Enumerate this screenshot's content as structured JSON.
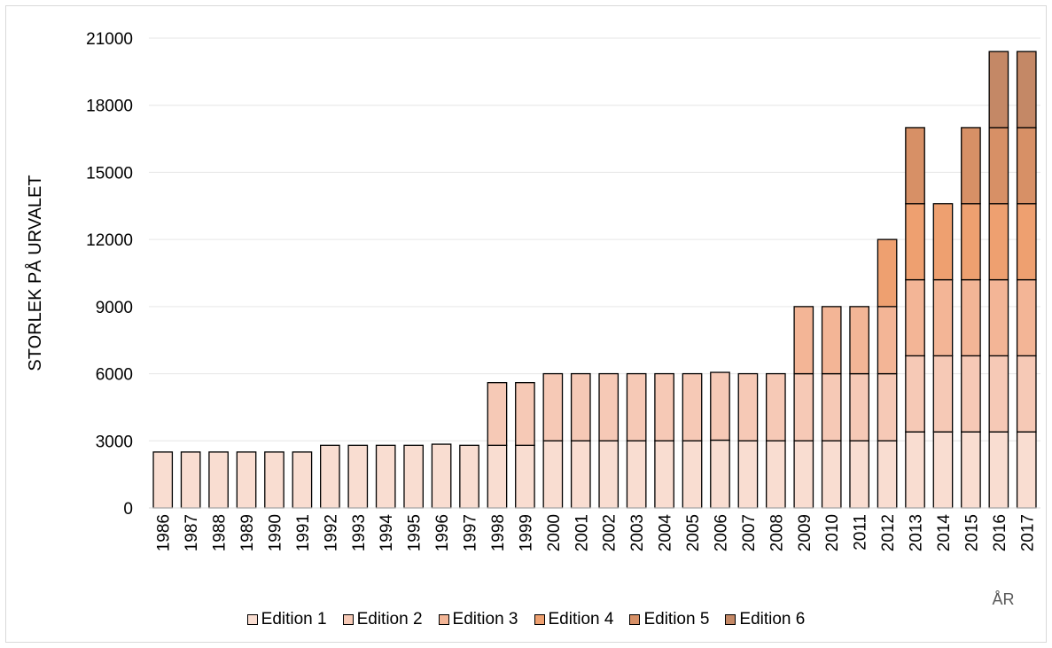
{
  "chart_data": {
    "type": "bar",
    "stacked": true,
    "title": "",
    "xlabel": "ÅR",
    "ylabel": "STORLEK PÅ URVALET",
    "ylim": [
      0,
      21000
    ],
    "yticks": [
      0,
      3000,
      6000,
      9000,
      12000,
      15000,
      18000,
      21000
    ],
    "ytick_labels": [
      "0",
      "3000",
      "6000",
      "9000",
      "12000",
      "15000",
      "18000",
      "21000"
    ],
    "grid": "horizontal",
    "legend_position": "bottom",
    "categories": [
      "1986",
      "1987",
      "1988",
      "1989",
      "1990",
      "1991",
      "1992",
      "1993",
      "1994",
      "1995",
      "1996",
      "1997",
      "1998",
      "1999",
      "2000",
      "2001",
      "2002",
      "2003",
      "2004",
      "2005",
      "2006",
      "2007",
      "2008",
      "2009",
      "2010",
      "2011",
      "2012",
      "2013",
      "2014",
      "2015",
      "2016",
      "2017"
    ],
    "series": [
      {
        "name": "Edition 1",
        "color": "#f9ddd1",
        "values": [
          2500,
          2500,
          2500,
          2500,
          2500,
          2500,
          2800,
          2800,
          2800,
          2800,
          2850,
          2800,
          2800,
          2800,
          3000,
          3000,
          3000,
          3000,
          3000,
          3000,
          3030,
          3000,
          3000,
          3000,
          3000,
          3000,
          3000,
          3400,
          3400,
          3400,
          3400,
          3400
        ]
      },
      {
        "name": "Edition 2",
        "color": "#f6c9b6",
        "values": [
          0,
          0,
          0,
          0,
          0,
          0,
          0,
          0,
          0,
          0,
          0,
          0,
          2800,
          2800,
          3000,
          3000,
          3000,
          3000,
          3000,
          3000,
          3030,
          3000,
          3000,
          3000,
          3000,
          3000,
          3000,
          3400,
          3400,
          3400,
          3400,
          3400
        ]
      },
      {
        "name": "Edition 3",
        "color": "#f3b596",
        "values": [
          0,
          0,
          0,
          0,
          0,
          0,
          0,
          0,
          0,
          0,
          0,
          0,
          0,
          0,
          0,
          0,
          0,
          0,
          0,
          0,
          0,
          0,
          0,
          3000,
          3000,
          3000,
          3000,
          3400,
          3400,
          3400,
          3400,
          3400
        ]
      },
      {
        "name": "Edition 4",
        "color": "#eea070",
        "values": [
          0,
          0,
          0,
          0,
          0,
          0,
          0,
          0,
          0,
          0,
          0,
          0,
          0,
          0,
          0,
          0,
          0,
          0,
          0,
          0,
          0,
          0,
          0,
          0,
          0,
          0,
          3000,
          3400,
          3400,
          3400,
          3400,
          3400
        ]
      },
      {
        "name": "Edition 5",
        "color": "#d79066",
        "values": [
          0,
          0,
          0,
          0,
          0,
          0,
          0,
          0,
          0,
          0,
          0,
          0,
          0,
          0,
          0,
          0,
          0,
          0,
          0,
          0,
          0,
          0,
          0,
          0,
          0,
          0,
          0,
          3400,
          0,
          3400,
          3400,
          3400
        ]
      },
      {
        "name": "Edition 6",
        "color": "#c48866",
        "values": [
          0,
          0,
          0,
          0,
          0,
          0,
          0,
          0,
          0,
          0,
          0,
          0,
          0,
          0,
          0,
          0,
          0,
          0,
          0,
          0,
          0,
          0,
          0,
          0,
          0,
          0,
          0,
          0,
          0,
          0,
          3400,
          3400
        ]
      }
    ]
  }
}
